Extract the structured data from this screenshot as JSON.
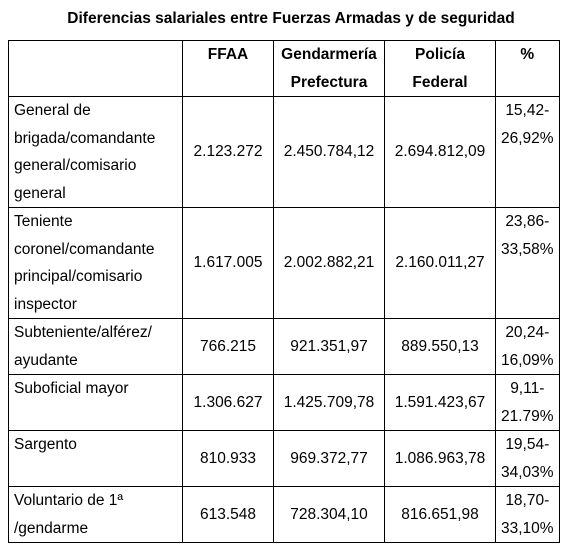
{
  "title": "Diferencias salariales entre Fuerzas Armadas y de seguridad",
  "table": {
    "headers": [
      {
        "lines": [
          ""
        ]
      },
      {
        "lines": [
          "FFAA"
        ]
      },
      {
        "lines": [
          "Gendarmería",
          "Prefectura"
        ]
      },
      {
        "lines": [
          "Policía",
          "Federal"
        ]
      },
      {
        "lines": [
          "%"
        ]
      }
    ],
    "rows": [
      {
        "label": [
          "General de",
          "brigada/comandante",
          "general/comisario",
          "general"
        ],
        "ffaa": "2.123.272",
        "gendarmeria": "2.450.784,12",
        "policia": "2.694.812,09",
        "pct": [
          "15,42-",
          "26,92%"
        ]
      },
      {
        "label": [
          "Teniente",
          "coronel/comandante",
          "principal/comisario",
          "inspector"
        ],
        "ffaa": "1.617.005",
        "gendarmeria": "2.002.882,21",
        "policia": "2.160.011,27",
        "pct": [
          "23,86-",
          "33,58%"
        ]
      },
      {
        "label": [
          "Subteniente/alférez/",
          "ayudante"
        ],
        "ffaa": "766.215",
        "gendarmeria": "921.351,97",
        "policia": "889.550,13",
        "pct": [
          "20,24-",
          "16,09%"
        ]
      },
      {
        "label": [
          "Suboficial mayor"
        ],
        "ffaa": "1.306.627",
        "gendarmeria": "1.425.709,78",
        "policia": "1.591.423,67",
        "pct": [
          "9,11-",
          "21.79%"
        ]
      },
      {
        "label": [
          "Sargento"
        ],
        "ffaa": "810.933",
        "gendarmeria": "969.372,77",
        "policia": "1.086.963,78",
        "pct": [
          "19,54-",
          "34,03%"
        ]
      },
      {
        "label": [
          "Voluntario de 1ª",
          "/gendarme"
        ],
        "ffaa": "613.548",
        "gendarmeria": "728.304,10",
        "policia": "816.651,98",
        "pct": [
          "18,70-",
          "33,10%"
        ]
      }
    ]
  }
}
